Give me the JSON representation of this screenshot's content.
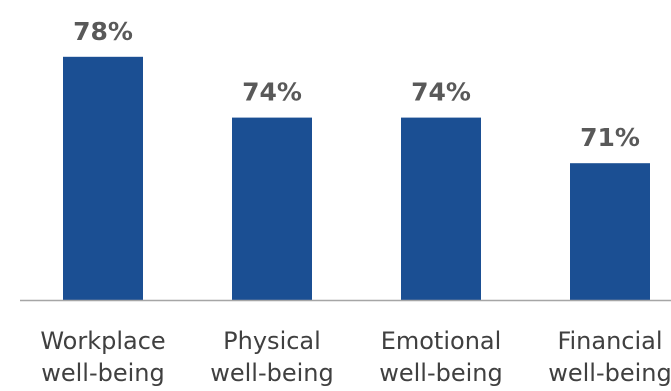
{
  "chart_data": {
    "type": "bar",
    "categories": [
      [
        "Workplace",
        "well-being"
      ],
      [
        "Physical",
        "well-being"
      ],
      [
        "Emotional",
        "well-being"
      ],
      [
        "Financial",
        "well-being"
      ]
    ],
    "values": [
      78,
      74,
      74,
      71
    ],
    "data_labels": [
      "78%",
      "74%",
      "74%",
      "71%"
    ],
    "title": "",
    "xlabel": "",
    "ylabel": "",
    "ylim": [
      62,
      80
    ],
    "grid": false,
    "legend": "none",
    "bar_color": "#1B4F93",
    "axis_color": "#A6A6A6"
  }
}
